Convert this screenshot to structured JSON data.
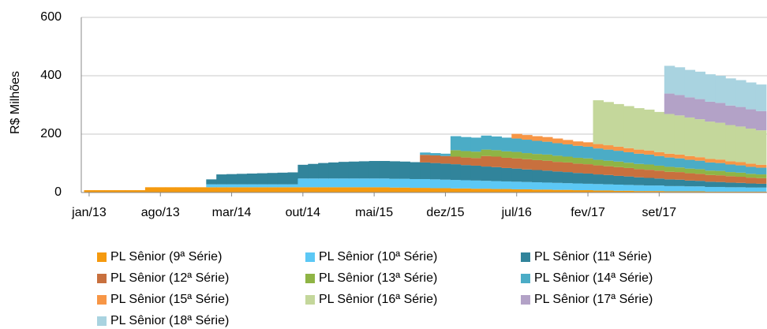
{
  "chart_data": {
    "type": "stacked_area",
    "y_label": "R$ Milhões",
    "ylim": [
      0,
      600
    ],
    "yticks": [
      0,
      200,
      400,
      600
    ],
    "grid": true,
    "categories": [
      "jan/13",
      null,
      null,
      null,
      null,
      null,
      null,
      "ago/13",
      null,
      null,
      null,
      null,
      null,
      null,
      "mar/14",
      null,
      null,
      null,
      null,
      null,
      null,
      "out/14",
      null,
      null,
      null,
      null,
      null,
      null,
      "mai/15",
      null,
      null,
      null,
      null,
      null,
      null,
      "dez/15",
      null,
      null,
      null,
      null,
      null,
      null,
      "jul/16",
      null,
      null,
      null,
      null,
      null,
      null,
      "fev/17",
      null,
      null,
      null,
      null,
      null,
      null,
      "set/17",
      null,
      null,
      null,
      null,
      null,
      null,
      null,
      null,
      null,
      null
    ],
    "series": [
      {
        "name": "PL Sênior (9ª Série)",
        "color": "#f59a0f",
        "values": [
          8,
          8,
          8,
          8,
          8,
          8,
          18,
          18,
          18,
          18,
          18,
          18,
          18,
          18,
          18,
          18,
          18,
          18,
          18,
          18,
          18,
          18,
          18,
          18,
          18,
          18,
          18,
          18,
          18,
          18,
          17,
          17,
          16,
          16,
          15,
          15,
          14,
          14,
          13,
          13,
          12,
          12,
          11,
          11,
          10,
          10,
          9,
          9,
          8,
          8,
          7,
          7,
          6,
          6,
          5,
          5,
          5,
          4,
          4,
          4,
          4,
          3,
          3,
          3,
          3,
          3,
          3
        ]
      },
      {
        "name": "PL Sênior (10ª Série)",
        "color": "#5cc8f5",
        "values": [
          null,
          null,
          null,
          null,
          null,
          null,
          null,
          null,
          null,
          null,
          null,
          null,
          10,
          10,
          10,
          10,
          10,
          10,
          10,
          10,
          10,
          30,
          30,
          30,
          30,
          30,
          30,
          30,
          30,
          30,
          30,
          30,
          30,
          30,
          30,
          29,
          29,
          28,
          28,
          27,
          27,
          26,
          26,
          25,
          25,
          24,
          24,
          23,
          23,
          22,
          22,
          21,
          21,
          20,
          20,
          19,
          19,
          18,
          18,
          17,
          17,
          16,
          16,
          15,
          15,
          14,
          14
        ]
      },
      {
        "name": "PL Sênior (11ª Série)",
        "color": "#31849b",
        "values": [
          null,
          null,
          null,
          null,
          null,
          null,
          null,
          null,
          null,
          null,
          null,
          null,
          17,
          34,
          35,
          36,
          37,
          38,
          39,
          40,
          41,
          47,
          50,
          53,
          55,
          57,
          58,
          59,
          60,
          60,
          60,
          59,
          58,
          57,
          56,
          55,
          54,
          52,
          51,
          49,
          48,
          46,
          45,
          43,
          42,
          41,
          39,
          38,
          36,
          35,
          33,
          32,
          30,
          29,
          27,
          26,
          24,
          23,
          22,
          20,
          19,
          18,
          17,
          16,
          15,
          14,
          13
        ]
      },
      {
        "name": "PL Sênior (12ª Série)",
        "color": "#c8703e",
        "values": [
          null,
          null,
          null,
          null,
          null,
          null,
          null,
          null,
          null,
          null,
          null,
          null,
          null,
          null,
          null,
          null,
          null,
          null,
          null,
          null,
          null,
          null,
          null,
          null,
          null,
          null,
          null,
          null,
          null,
          null,
          null,
          null,
          null,
          26,
          26,
          26,
          26,
          26,
          26,
          36,
          36,
          35,
          35,
          35,
          34,
          34,
          33,
          33,
          32,
          32,
          31,
          30,
          30,
          29,
          28,
          28,
          27,
          26,
          26,
          25,
          24,
          23,
          23,
          22,
          21,
          20,
          19
        ]
      },
      {
        "name": "PL Sênior (13ª Série)",
        "color": "#8fb445",
        "values": [
          null,
          null,
          null,
          null,
          null,
          null,
          null,
          null,
          null,
          null,
          null,
          null,
          null,
          null,
          null,
          null,
          null,
          null,
          null,
          null,
          null,
          null,
          null,
          null,
          null,
          null,
          null,
          null,
          null,
          null,
          null,
          null,
          null,
          null,
          null,
          null,
          22,
          22,
          22,
          22,
          22,
          22,
          22,
          21,
          21,
          21,
          21,
          20,
          20,
          20,
          19,
          19,
          19,
          18,
          18,
          18,
          17,
          17,
          16,
          16,
          16,
          15,
          15,
          14,
          14,
          13,
          13
        ]
      },
      {
        "name": "PL Sênior (14ª Série)",
        "color": "#4bacc6",
        "values": [
          null,
          null,
          null,
          null,
          null,
          null,
          null,
          null,
          null,
          null,
          null,
          null,
          null,
          null,
          null,
          null,
          null,
          null,
          null,
          null,
          null,
          null,
          null,
          null,
          null,
          null,
          null,
          null,
          null,
          null,
          null,
          null,
          null,
          8,
          8,
          8,
          48,
          48,
          48,
          48,
          47,
          47,
          46,
          46,
          45,
          44,
          43,
          42,
          41,
          40,
          39,
          38,
          37,
          36,
          35,
          34,
          33,
          32,
          31,
          30,
          29,
          28,
          27,
          26,
          25,
          24,
          23
        ]
      },
      {
        "name": "PL Sênior (15ª Série)",
        "color": "#f79646",
        "values": [
          null,
          null,
          null,
          null,
          null,
          null,
          null,
          null,
          null,
          null,
          null,
          null,
          null,
          null,
          null,
          null,
          null,
          null,
          null,
          null,
          null,
          null,
          null,
          null,
          null,
          null,
          null,
          null,
          null,
          null,
          null,
          null,
          null,
          null,
          null,
          null,
          null,
          null,
          null,
          null,
          null,
          null,
          16,
          16,
          16,
          16,
          16,
          15,
          15,
          15,
          15,
          15,
          14,
          14,
          14,
          14,
          13,
          13,
          13,
          13,
          12,
          12,
          12,
          11,
          11,
          11,
          10
        ]
      },
      {
        "name": "PL Sênior (16ª Série)",
        "color": "#c4d79b",
        "values": [
          null,
          null,
          null,
          null,
          null,
          null,
          null,
          null,
          null,
          null,
          null,
          null,
          null,
          null,
          null,
          null,
          null,
          null,
          null,
          null,
          null,
          null,
          null,
          null,
          null,
          null,
          null,
          null,
          null,
          null,
          null,
          null,
          null,
          null,
          null,
          null,
          null,
          null,
          null,
          null,
          null,
          null,
          null,
          null,
          null,
          null,
          null,
          null,
          null,
          null,
          150,
          148,
          146,
          144,
          142,
          140,
          138,
          136,
          134,
          132,
          130,
          128,
          126,
          124,
          122,
          120,
          118
        ]
      },
      {
        "name": "PL Sênior (17ª Série)",
        "color": "#b3a2c7",
        "values": [
          null,
          null,
          null,
          null,
          null,
          null,
          null,
          null,
          null,
          null,
          null,
          null,
          null,
          null,
          null,
          null,
          null,
          null,
          null,
          null,
          null,
          null,
          null,
          null,
          null,
          null,
          null,
          null,
          null,
          null,
          null,
          null,
          null,
          null,
          null,
          null,
          null,
          null,
          null,
          null,
          null,
          null,
          null,
          null,
          null,
          null,
          null,
          null,
          null,
          null,
          null,
          null,
          null,
          null,
          null,
          null,
          null,
          70,
          70,
          69,
          69,
          68,
          68,
          67,
          67,
          66,
          66
        ]
      },
      {
        "name": "PL Sênior (18ª Série)",
        "color": "#a9d3e0",
        "values": [
          null,
          null,
          null,
          null,
          null,
          null,
          null,
          null,
          null,
          null,
          null,
          null,
          null,
          null,
          null,
          null,
          null,
          null,
          null,
          null,
          null,
          null,
          null,
          null,
          null,
          null,
          null,
          null,
          null,
          null,
          null,
          null,
          null,
          null,
          null,
          null,
          null,
          null,
          null,
          null,
          null,
          null,
          null,
          null,
          null,
          null,
          null,
          null,
          null,
          null,
          null,
          null,
          null,
          null,
          null,
          null,
          null,
          95,
          95,
          94,
          94,
          94,
          93,
          93,
          92,
          92,
          91
        ]
      }
    ]
  }
}
